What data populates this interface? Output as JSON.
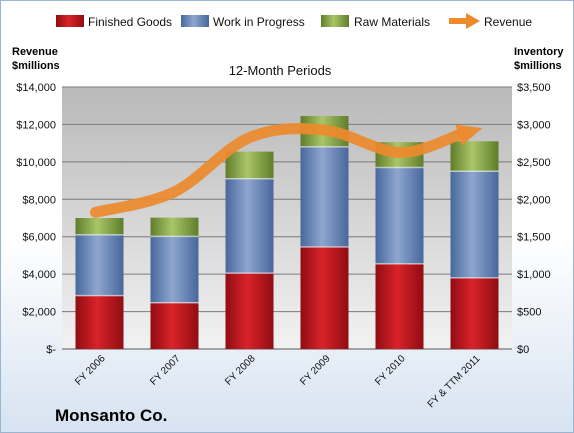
{
  "chart_data": {
    "type": "bar",
    "subtitle": "12-Month Periods",
    "company": "Monsanto Co.",
    "categories": [
      "FY 2006",
      "FY 2007",
      "FY 2008",
      "FY 2009",
      "FY 2010",
      "FY & TTM 2011"
    ],
    "series": [
      {
        "name": "Finished Goods",
        "axis": "right",
        "kind": "stacked-bar",
        "color": "#c0141b",
        "values": [
          713,
          618,
          1013,
          1362,
          1138,
          950
        ]
      },
      {
        "name": "Work in Progress",
        "axis": "right",
        "kind": "stacked-bar",
        "color": "#6a86b8",
        "values": [
          812,
          887,
          1262,
          1338,
          1287,
          1425
        ]
      },
      {
        "name": "Raw Materials",
        "axis": "right",
        "kind": "stacked-bar",
        "color": "#8fae4a",
        "values": [
          225,
          250,
          362,
          412,
          338,
          400
        ]
      },
      {
        "name": "Revenue",
        "axis": "left",
        "kind": "line",
        "color": "#ed8a2c",
        "values": [
          7300,
          8400,
          11300,
          11700,
          10500,
          11800
        ]
      }
    ],
    "ylabel_left": "Revenue\n$millions",
    "ylabel_right": "Inventory\n$millions",
    "ylim_left": [
      0,
      14000
    ],
    "ylim_right": [
      0,
      3500
    ],
    "yticks_left": [
      "$-",
      "$2,000",
      "$4,000",
      "$6,000",
      "$8,000",
      "$10,000",
      "$12,000",
      "$14,000"
    ],
    "yticks_right": [
      "$0",
      "$500",
      "$1,000",
      "$1,500",
      "$2,000",
      "$2,500",
      "$3,000",
      "$3,500"
    ],
    "grid": true,
    "legend_position": "top"
  }
}
